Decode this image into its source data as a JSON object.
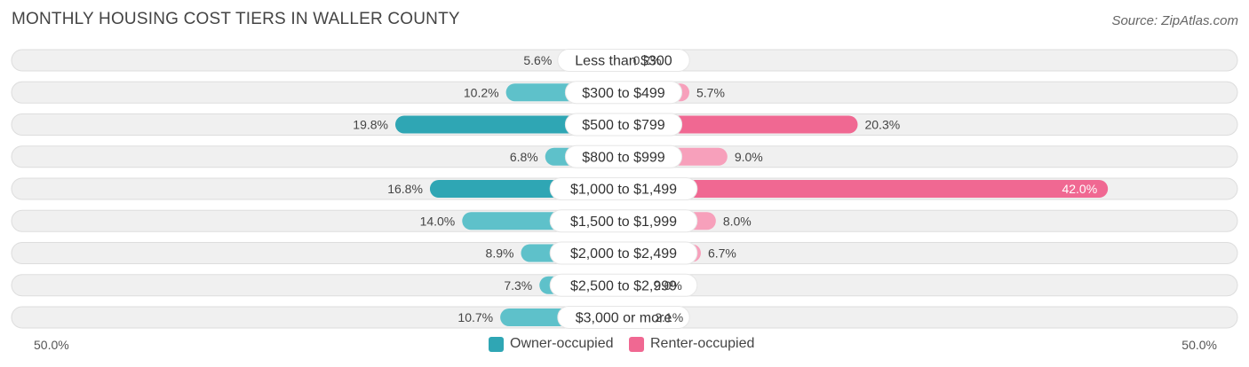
{
  "title": "MONTHLY HOUSING COST TIERS IN WALLER COUNTY",
  "source": "Source: ZipAtlas.com",
  "colors": {
    "owner": "#5ec1ca",
    "owner_strong": "#2fa6b4",
    "renter": "#f7a0bb",
    "renter_strong": "#f06892",
    "track": "#f0f0f0",
    "track_border": "#dddddd"
  },
  "axis": {
    "left_label": "50.0%",
    "right_label": "50.0%"
  },
  "legend": {
    "owner_label": "Owner-occupied",
    "renter_label": "Renter-occupied"
  },
  "chart_data": {
    "type": "bar",
    "orientation": "horizontal-diverging",
    "title": "MONTHLY HOUSING COST TIERS IN WALLER COUNTY",
    "categories": [
      "Less than $300",
      "$300 to $499",
      "$500 to $799",
      "$800 to $999",
      "$1,000 to $1,499",
      "$1,500 to $1,999",
      "$2,000 to $2,499",
      "$2,500 to $2,999",
      "$3,000 or more"
    ],
    "series": [
      {
        "name": "Owner-occupied",
        "side": "left",
        "values": [
          5.6,
          10.2,
          19.8,
          6.8,
          16.8,
          14.0,
          8.9,
          7.3,
          10.7
        ],
        "labels": [
          "5.6%",
          "10.2%",
          "19.8%",
          "6.8%",
          "16.8%",
          "14.0%",
          "8.9%",
          "7.3%",
          "10.7%"
        ]
      },
      {
        "name": "Renter-occupied",
        "side": "right",
        "values": [
          0.2,
          5.7,
          20.3,
          9.0,
          42.0,
          8.0,
          6.7,
          2.0,
          2.1
        ],
        "labels": [
          "0.2%",
          "5.7%",
          "20.3%",
          "9.0%",
          "42.0%",
          "8.0%",
          "6.7%",
          "2.0%",
          "2.1%"
        ]
      }
    ],
    "xlim": [
      -50,
      50
    ],
    "legend_position": "bottom-center",
    "grid": false
  }
}
